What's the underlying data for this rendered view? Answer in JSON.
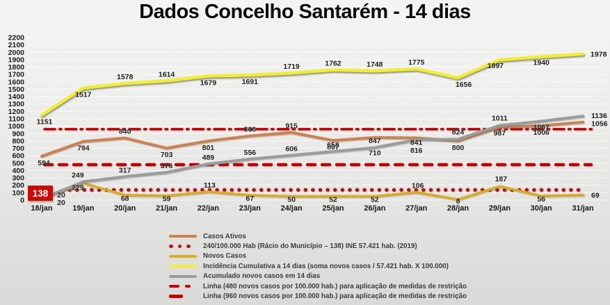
{
  "page": {
    "title": "Dados Concelho Santarém - 14 dias"
  },
  "chart_data": {
    "type": "line",
    "title": "Dados Concelho Santarém - 14 dias",
    "categories": [
      "18/jan",
      "19/jan",
      "20/jan",
      "21/jan",
      "22/jan",
      "23/jan",
      "24/jan",
      "25/jan",
      "26/jan",
      "27/jan",
      "28/jan",
      "29/jan",
      "30/jan",
      "31/jan"
    ],
    "y_axis": {
      "min": 0,
      "max": 2200,
      "step": 100,
      "grid": true
    },
    "legend_position": "bottom",
    "series": [
      {
        "id": "casos-ativos",
        "name": "Casos Ativos",
        "color": "#cd8150",
        "values": [
          594,
          794,
          840,
          703,
          801,
          868,
          915,
          807,
          847,
          841,
          800,
          987,
          1006,
          1056
        ]
      },
      {
        "id": "novos-casos",
        "name": "Novos Casos",
        "color": "#dcab1e",
        "values": [
          20,
          229,
          68,
          59,
          113,
          67,
          50,
          52,
          52,
          106,
          8,
          187,
          56,
          69
        ]
      },
      {
        "id": "incidencia-cumulativa",
        "name": "Incidência Cumulativa a 14 dias (soma novos casos / 57.421 hab. X 100.000)",
        "color": "#f2ee2e",
        "values": [
          1151,
          1517,
          1578,
          1614,
          1679,
          1691,
          1719,
          1762,
          1748,
          1775,
          1656,
          1897,
          1940,
          1978
        ]
      },
      {
        "id": "acumulado-novos-casos",
        "name": "Acumulado novos casos em 14 dias",
        "color": "#9c9c9c",
        "values": [
          20,
          249,
          317,
          376,
          489,
          556,
          606,
          658,
          710,
          816,
          824,
          1011,
          1067,
          1136
        ]
      }
    ],
    "reference_lines": [
      {
        "id": "racio-municipio",
        "label": "240/100.000 Hab (Rácio do Município – 138) INE 57.421 hab. (2019)",
        "value": 138,
        "style": "dotted",
        "color": "#b6141b"
      },
      {
        "id": "linha-480",
        "label": "Linha (480 novos casos por 100.000 hab.) para aplicação de medidas de restrição",
        "value": 480,
        "style": "dashed",
        "color": "#c00000"
      },
      {
        "id": "linha-960",
        "label": "Linha (960 novos casos por 100.000 hab.) para aplicação de medidas de restrição",
        "value": 960,
        "style": "dashdot",
        "color": "#c00000"
      }
    ],
    "annotation_box": {
      "text": "138",
      "bg": "#cb0a0a",
      "fg": "#ffffff"
    },
    "legend": [
      {
        "label": "Casos Ativos",
        "color": "#cd8150",
        "style": "solid"
      },
      {
        "label": "240/100.000 Hab (Rácio do Município – 138) INE  57.421 hab. (2019)",
        "color": "#b6141b",
        "style": "dots"
      },
      {
        "label": "Novos Casos",
        "color": "#dcab1e",
        "style": "solid"
      },
      {
        "label": "Incidência Cumulativa a 14 dias (soma novos casos / 57.421 hab. X 100.000)",
        "color": "#f2ee2e",
        "style": "solid"
      },
      {
        "label": "Acumulado novos casos em 14 dias",
        "color": "#9c9c9c",
        "style": "solid"
      },
      {
        "label": "Linha (480 novos casos por 100.000 hab.) para aplicação de medidas de restrição",
        "color": "#c00000",
        "style": "dash2"
      },
      {
        "label": "Linha (960 novos casos por 100.000 hab.) para aplicação de medidas de restrição",
        "color": "#c00000",
        "style": "dash1"
      }
    ]
  }
}
